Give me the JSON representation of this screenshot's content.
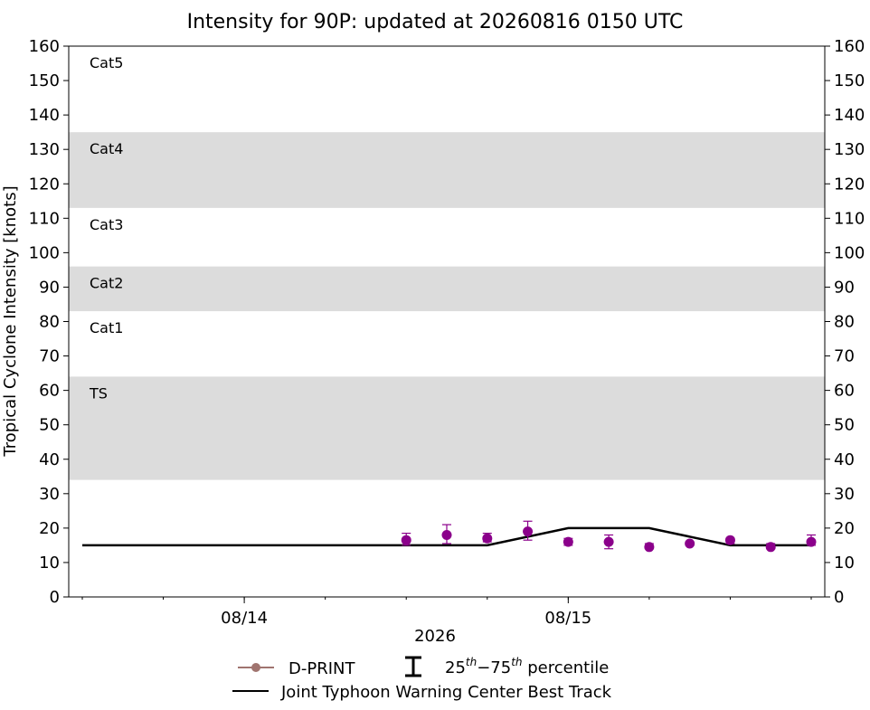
{
  "chart_data": {
    "type": "scatter",
    "title": "Intensity for 90P: updated at 20260816 0150 UTC",
    "ylabel": "Tropical Cyclone Intensity [knots]",
    "xlabel": "2026",
    "ylim": [
      0,
      160
    ],
    "xlim": [
      "2026-08-13T12:00",
      "2026-08-15T18:00"
    ],
    "yticks": [
      0,
      10,
      20,
      30,
      40,
      50,
      60,
      70,
      80,
      90,
      100,
      110,
      120,
      130,
      140,
      150,
      160
    ],
    "xticks": [
      {
        "x": "2026-08-14T00:00",
        "label": "08/14"
      },
      {
        "x": "2026-08-15T00:00",
        "label": "08/15"
      }
    ],
    "category_bands": [
      {
        "name": "TS",
        "from": 34,
        "to": 64,
        "shaded": true
      },
      {
        "name": "Cat1",
        "from": 64,
        "to": 83,
        "shaded": false
      },
      {
        "name": "Cat2",
        "from": 83,
        "to": 96,
        "shaded": true
      },
      {
        "name": "Cat3",
        "from": 96,
        "to": 113,
        "shaded": false
      },
      {
        "name": "Cat4",
        "from": 113,
        "to": 135,
        "shaded": true
      },
      {
        "name": "Cat5",
        "from": 135,
        "to": 160,
        "shaded": false
      }
    ],
    "series": [
      {
        "name": "D-PRINT",
        "kind": "points_with_errorbars",
        "color": "#8b008b",
        "legend_color": "#a0746f",
        "points": [
          {
            "x": "2026-08-14T12:00",
            "y": 16.5,
            "p25": 15,
            "p75": 18.5
          },
          {
            "x": "2026-08-14T15:00",
            "y": 18,
            "p25": 15.5,
            "p75": 21
          },
          {
            "x": "2026-08-14T18:00",
            "y": 17,
            "p25": 16,
            "p75": 18.5
          },
          {
            "x": "2026-08-14T21:00",
            "y": 19,
            "p25": 16.5,
            "p75": 22
          },
          {
            "x": "2026-08-15T00:00",
            "y": 16,
            "p25": 15,
            "p75": 17
          },
          {
            "x": "2026-08-15T03:00",
            "y": 16,
            "p25": 14,
            "p75": 18
          },
          {
            "x": "2026-08-15T06:00",
            "y": 14.5,
            "p25": 14,
            "p75": 15.5
          },
          {
            "x": "2026-08-15T09:00",
            "y": 15.5,
            "p25": 15,
            "p75": 16
          },
          {
            "x": "2026-08-15T12:00",
            "y": 16.5,
            "p25": 15.5,
            "p75": 17
          },
          {
            "x": "2026-08-15T15:00",
            "y": 14.5,
            "p25": 14,
            "p75": 15.5
          },
          {
            "x": "2026-08-15T18:00",
            "y": 16,
            "p25": 15,
            "p75": 18
          }
        ]
      },
      {
        "name": "Joint Typhoon Warning Center Best Track",
        "kind": "line",
        "color": "#000000",
        "points": [
          {
            "x": "2026-08-13T12:00",
            "y": 15
          },
          {
            "x": "2026-08-14T18:00",
            "y": 15
          },
          {
            "x": "2026-08-15T00:00",
            "y": 20
          },
          {
            "x": "2026-08-15T06:00",
            "y": 20
          },
          {
            "x": "2026-08-15T12:00",
            "y": 15
          },
          {
            "x": "2026-08-15T18:00",
            "y": 15
          }
        ]
      }
    ],
    "legend": {
      "placement": "bottom-center",
      "entries": [
        {
          "label": "D-PRINT"
        },
        {
          "label": "25",
          "sup1": "th",
          "mid": "−75",
          "sup2": "th",
          "tail": " percentile"
        },
        {
          "label": "Joint Typhoon Warning Center Best Track"
        }
      ]
    },
    "grid": false
  }
}
